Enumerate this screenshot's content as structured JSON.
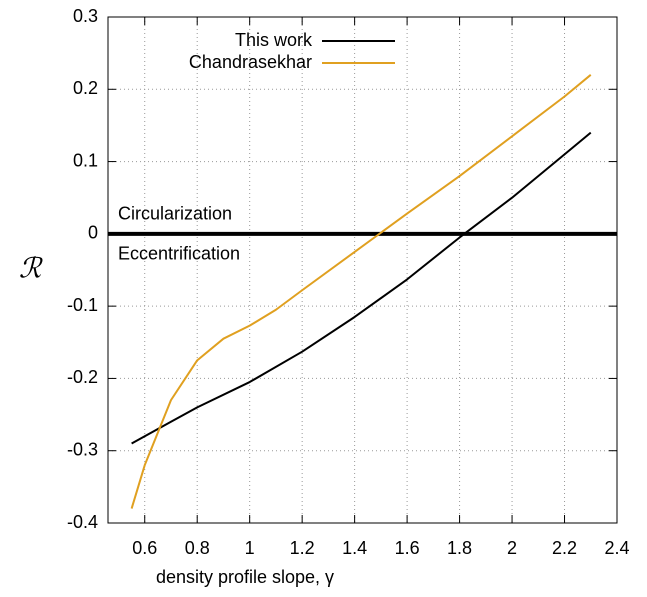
{
  "chart_data": {
    "type": "line",
    "xlabel": "density profile slope, γ",
    "ylabel": "ℛ",
    "annotations": [
      "Circularization",
      "Eccentrification"
    ],
    "hline": 0,
    "series": [
      {
        "name": "This work",
        "color": "#000000",
        "x": [
          0.55,
          0.6,
          0.7,
          0.8,
          1.0,
          1.2,
          1.4,
          1.6,
          1.8,
          2.0,
          2.2,
          2.3
        ],
        "values": [
          -0.29,
          -0.28,
          -0.26,
          -0.24,
          -0.205,
          -0.163,
          -0.115,
          -0.063,
          -0.005,
          0.05,
          0.11,
          0.14
        ]
      },
      {
        "name": "Chandrasekhar",
        "color": "#e0a020",
        "x": [
          0.55,
          0.6,
          0.7,
          0.8,
          0.9,
          1.0,
          1.1,
          1.2,
          1.4,
          1.6,
          1.8,
          2.0,
          2.2,
          2.3
        ],
        "values": [
          -0.38,
          -0.32,
          -0.23,
          -0.175,
          -0.145,
          -0.127,
          -0.105,
          -0.078,
          -0.025,
          0.028,
          0.08,
          0.135,
          0.19,
          0.22
        ]
      }
    ],
    "xlim": [
      0.46,
      2.4
    ],
    "xticks": [
      0.6,
      0.8,
      1,
      1.2,
      1.4,
      1.6,
      1.8,
      2,
      2.2,
      2.4
    ],
    "ylim": [
      -0.4,
      0.3
    ],
    "yticks": [
      -0.4,
      -0.3,
      -0.2,
      -0.1,
      0,
      0.1,
      0.2,
      0.3
    ],
    "grid": true,
    "legend": "top"
  }
}
